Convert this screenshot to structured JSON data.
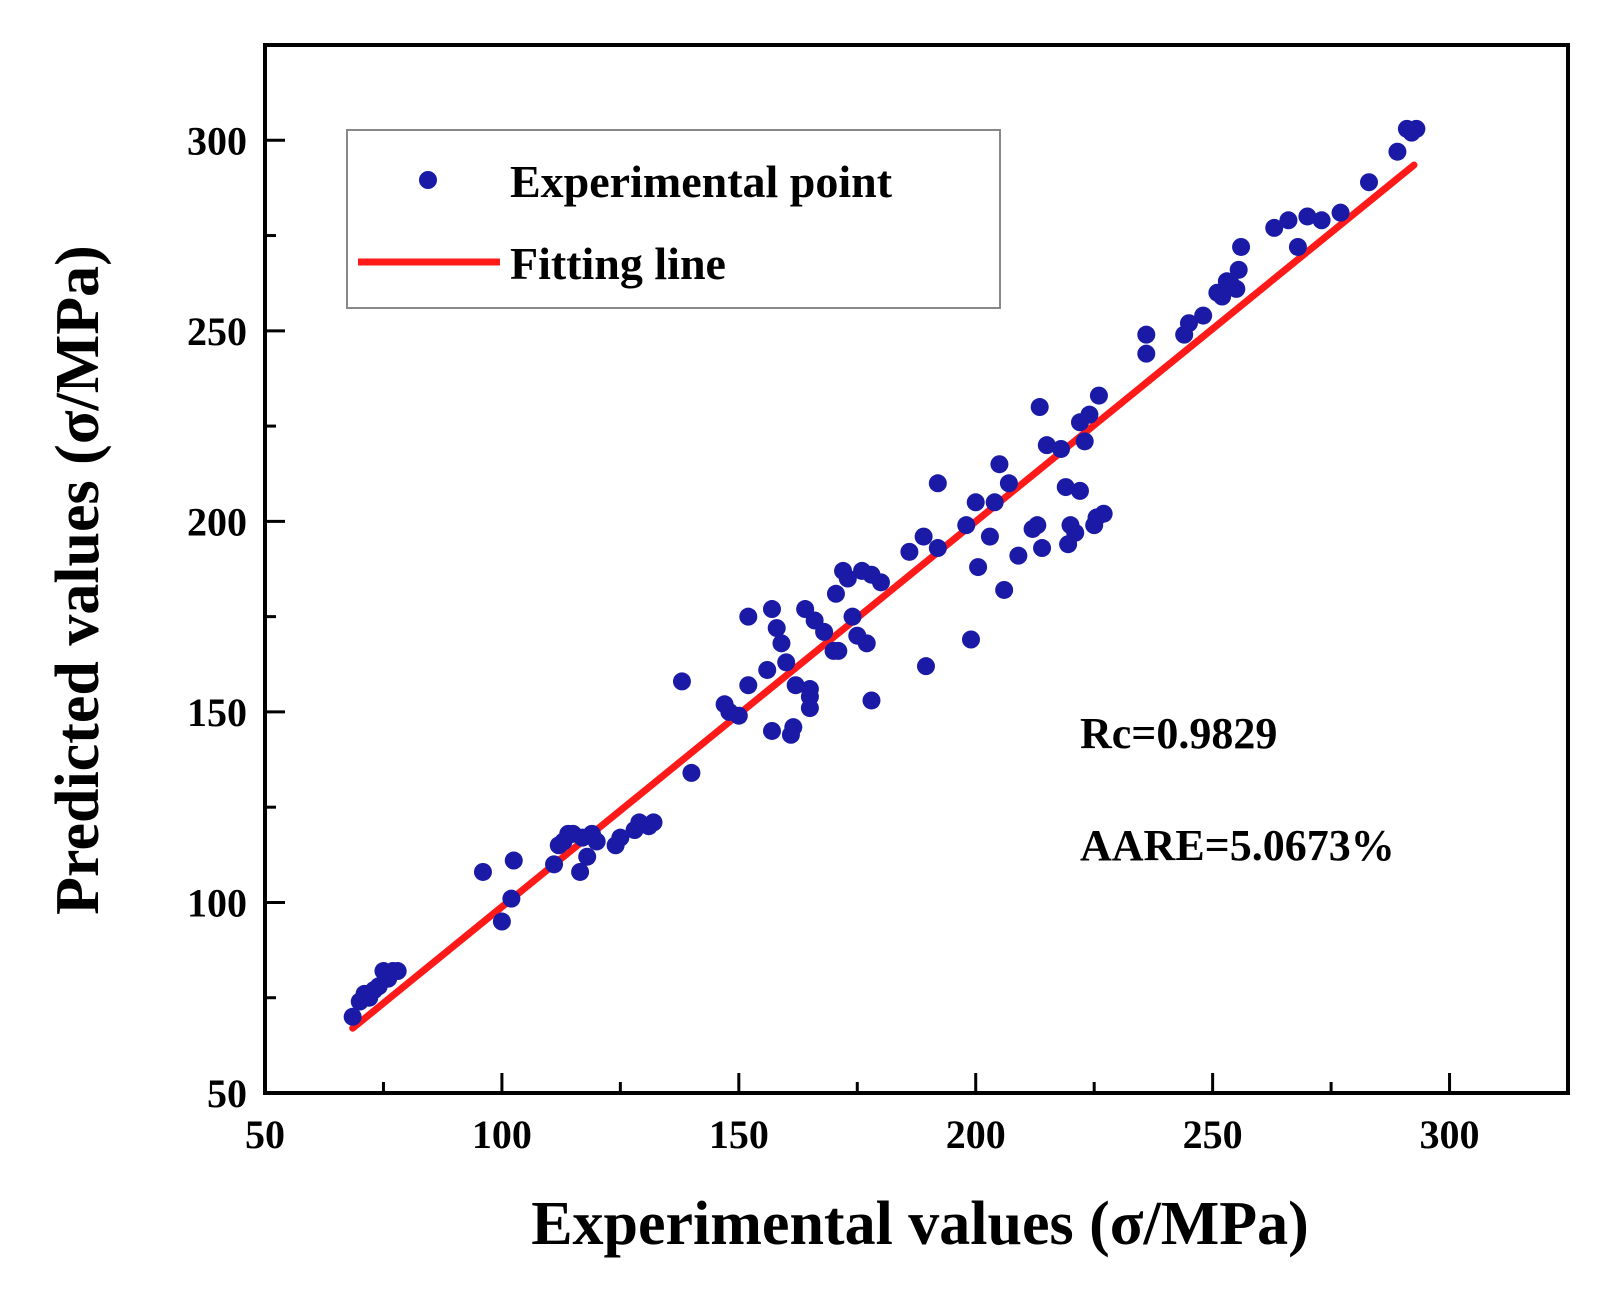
{
  "chart_data": {
    "type": "scatter",
    "xlabel": "Experimental values (σ/MPa)",
    "ylabel": "Predicted values (σ/MPa)",
    "xlim": [
      50,
      325
    ],
    "ylim": [
      50,
      325
    ],
    "x_ticks": [
      "50",
      "100",
      "150",
      "200",
      "250",
      "300"
    ],
    "y_ticks": [
      "50",
      "100",
      "150",
      "200",
      "250",
      "300"
    ],
    "x_tick_values": [
      50,
      100,
      150,
      200,
      250,
      300
    ],
    "y_tick_values": [
      50,
      100,
      150,
      200,
      250,
      300
    ],
    "minor_step": 25,
    "legend": {
      "position": "top-left",
      "entries": [
        {
          "label": "Experimental point",
          "marker": "dot"
        },
        {
          "label": "Fitting line",
          "marker": "line"
        }
      ]
    },
    "annotations": [
      "Rc=0.9829",
      "AARE=5.0673%"
    ],
    "colors": {
      "points": "#1a1aa6",
      "line": "#ff1a1a",
      "axis": "#000000",
      "legend_border": "#888888"
    },
    "series": [
      {
        "name": "Experimental point",
        "kind": "scatter",
        "points": [
          [
            68.5,
            70
          ],
          [
            70,
            74
          ],
          [
            71,
            76
          ],
          [
            72,
            75
          ],
          [
            73,
            77
          ],
          [
            74,
            78
          ],
          [
            75,
            82
          ],
          [
            76,
            80
          ],
          [
            77,
            82
          ],
          [
            78,
            82
          ],
          [
            96,
            108
          ],
          [
            100,
            95
          ],
          [
            102,
            101
          ],
          [
            102.5,
            111
          ],
          [
            111,
            110
          ],
          [
            112,
            115
          ],
          [
            113,
            116
          ],
          [
            114,
            118
          ],
          [
            115,
            118
          ],
          [
            116.5,
            108
          ],
          [
            117,
            117
          ],
          [
            118,
            112
          ],
          [
            119,
            118
          ],
          [
            120,
            116
          ],
          [
            124,
            115
          ],
          [
            125,
            117
          ],
          [
            128,
            119
          ],
          [
            129,
            121
          ],
          [
            131,
            120
          ],
          [
            132,
            121
          ],
          [
            138,
            158
          ],
          [
            140,
            134
          ],
          [
            147,
            152
          ],
          [
            148,
            150
          ],
          [
            150,
            149
          ],
          [
            152,
            175
          ],
          [
            152,
            157
          ],
          [
            156,
            161
          ],
          [
            157,
            177
          ],
          [
            157,
            145
          ],
          [
            158,
            172
          ],
          [
            159,
            168
          ],
          [
            160,
            163
          ],
          [
            161,
            144
          ],
          [
            161.5,
            146
          ],
          [
            162,
            157
          ],
          [
            164,
            177
          ],
          [
            165,
            151
          ],
          [
            165,
            156
          ],
          [
            165,
            154
          ],
          [
            166,
            174
          ],
          [
            168,
            171
          ],
          [
            170,
            166
          ],
          [
            170.5,
            181
          ],
          [
            171,
            166
          ],
          [
            172,
            187
          ],
          [
            173,
            185
          ],
          [
            174,
            175
          ],
          [
            175,
            170
          ],
          [
            176,
            187
          ],
          [
            177,
            168
          ],
          [
            178,
            186
          ],
          [
            178,
            153
          ],
          [
            180,
            184
          ],
          [
            186,
            192
          ],
          [
            189,
            196
          ],
          [
            189.5,
            162
          ],
          [
            192,
            210
          ],
          [
            192,
            193
          ],
          [
            198,
            199
          ],
          [
            199,
            169
          ],
          [
            200,
            205
          ],
          [
            200.5,
            188
          ],
          [
            203,
            196
          ],
          [
            204,
            205
          ],
          [
            205,
            215
          ],
          [
            206,
            182
          ],
          [
            207,
            210
          ],
          [
            209,
            191
          ],
          [
            212,
            198
          ],
          [
            213,
            199
          ],
          [
            213.5,
            230
          ],
          [
            214,
            193
          ],
          [
            215,
            220
          ],
          [
            218,
            219
          ],
          [
            219,
            209
          ],
          [
            219.5,
            194
          ],
          [
            220,
            199
          ],
          [
            221,
            197
          ],
          [
            222,
            208
          ],
          [
            222,
            226
          ],
          [
            223,
            221
          ],
          [
            224,
            228
          ],
          [
            225,
            199
          ],
          [
            225.5,
            201
          ],
          [
            226,
            233
          ],
          [
            227,
            202
          ],
          [
            236,
            249
          ],
          [
            236,
            244
          ],
          [
            244,
            249
          ],
          [
            245,
            252
          ],
          [
            248,
            254
          ],
          [
            251,
            260
          ],
          [
            252,
            259
          ],
          [
            253,
            263
          ],
          [
            254,
            262
          ],
          [
            255,
            261
          ],
          [
            255.5,
            266
          ],
          [
            256,
            272
          ],
          [
            263,
            277
          ],
          [
            266,
            279
          ],
          [
            268,
            272
          ],
          [
            270,
            280
          ],
          [
            273,
            279
          ],
          [
            277,
            281
          ],
          [
            283,
            289
          ],
          [
            289,
            297
          ],
          [
            291,
            303
          ],
          [
            292,
            302
          ],
          [
            293,
            303
          ]
        ]
      },
      {
        "name": "Fitting line",
        "kind": "line",
        "points": [
          [
            68.5,
            67
          ],
          [
            292.5,
            293.5
          ]
        ]
      }
    ]
  }
}
